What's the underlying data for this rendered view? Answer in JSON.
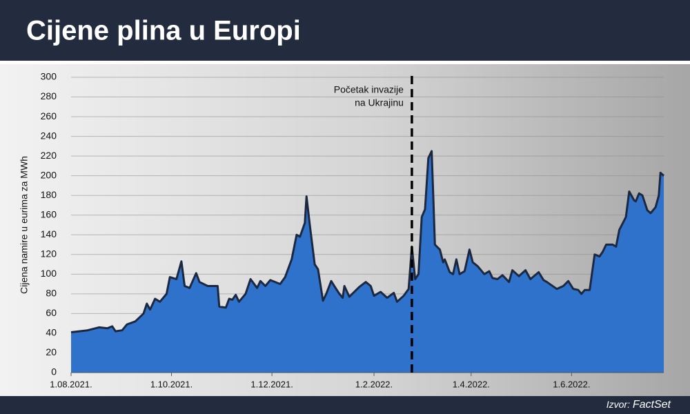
{
  "chart_data": {
    "type": "area",
    "title": "Cijene plina u Europi",
    "ylabel": "Cijena namire u eurima za MWh",
    "source": {
      "label": "Izvor:",
      "name": "FactSet"
    },
    "annotation": {
      "lines": [
        "Početak invazije",
        "na Ukrajinu"
      ],
      "x": "2022-02-24"
    },
    "color": "#2e72cc",
    "line_color": "#1c2740",
    "grid": true,
    "xlim": [
      "2021-08-01",
      "2022-07-27"
    ],
    "xticks": [
      {
        "value": "2021-08-01",
        "label": "1.08.2021."
      },
      {
        "value": "2021-10-01",
        "label": "1.10.2021."
      },
      {
        "value": "2021-12-01",
        "label": "1.12.2021."
      },
      {
        "value": "2022-02-01",
        "label": "1.2.2022."
      },
      {
        "value": "2022-04-01",
        "label": "1.4.2022."
      },
      {
        "value": "2022-06-01",
        "label": "1.6.2022."
      }
    ],
    "ylim": [
      0,
      300
    ],
    "yticks": [
      0,
      20,
      40,
      60,
      80,
      100,
      120,
      140,
      160,
      180,
      200,
      220,
      240,
      260,
      280,
      300
    ],
    "x": [
      "2021-08-01",
      "2021-08-11",
      "2021-08-18",
      "2021-08-23",
      "2021-08-26",
      "2021-08-28",
      "2021-09-01",
      "2021-09-04",
      "2021-09-09",
      "2021-09-14",
      "2021-09-16",
      "2021-09-18",
      "2021-09-21",
      "2021-09-24",
      "2021-09-28",
      "2021-09-30",
      "2021-10-04",
      "2021-10-07",
      "2021-10-09",
      "2021-10-12",
      "2021-10-16",
      "2021-10-18",
      "2021-10-23",
      "2021-10-29",
      "2021-10-30",
      "2021-11-03",
      "2021-11-05",
      "2021-11-07",
      "2021-11-09",
      "2021-11-11",
      "2021-11-15",
      "2021-11-18",
      "2021-11-22",
      "2021-11-24",
      "2021-11-27",
      "2021-11-30",
      "2021-12-06",
      "2021-12-09",
      "2021-12-13",
      "2021-12-16",
      "2021-12-18",
      "2021-12-21",
      "2021-12-22",
      "2021-12-24",
      "2021-12-27",
      "2021-12-29",
      "2022-01-01",
      "2022-01-03",
      "2022-01-06",
      "2022-01-09",
      "2022-01-11",
      "2022-01-13",
      "2022-01-14",
      "2022-01-17",
      "2022-01-23",
      "2022-01-27",
      "2022-01-30",
      "2022-02-01",
      "2022-02-05",
      "2022-02-09",
      "2022-02-13",
      "2022-02-15",
      "2022-02-19",
      "2022-02-22",
      "2022-02-24",
      "2022-02-26",
      "2022-02-28",
      "2022-03-02",
      "2022-03-04",
      "2022-03-06",
      "2022-03-08",
      "2022-03-09",
      "2022-03-10",
      "2022-03-13",
      "2022-03-15",
      "2022-03-16",
      "2022-03-19",
      "2022-03-21",
      "2022-03-23",
      "2022-03-25",
      "2022-03-28",
      "2022-03-31",
      "2022-04-02",
      "2022-04-05",
      "2022-04-09",
      "2022-04-12",
      "2022-04-14",
      "2022-04-17",
      "2022-04-20",
      "2022-04-24",
      "2022-04-26",
      "2022-04-30",
      "2022-05-04",
      "2022-05-07",
      "2022-05-12",
      "2022-05-15",
      "2022-05-17",
      "2022-05-23",
      "2022-05-27",
      "2022-05-30",
      "2022-06-02",
      "2022-06-05",
      "2022-06-07",
      "2022-06-09",
      "2022-06-12",
      "2022-06-15",
      "2022-06-18",
      "2022-06-20",
      "2022-06-22",
      "2022-06-26",
      "2022-06-28",
      "2022-06-30",
      "2022-07-04",
      "2022-07-06",
      "2022-07-09",
      "2022-07-10",
      "2022-07-12",
      "2022-07-14",
      "2022-07-17",
      "2022-07-19",
      "2022-07-22",
      "2022-07-24",
      "2022-07-25",
      "2022-07-27"
    ],
    "values": [
      41,
      43,
      46,
      45,
      47,
      42,
      43,
      49,
      52,
      60,
      70,
      64,
      75,
      72,
      80,
      97,
      95,
      113,
      88,
      86,
      101,
      92,
      88,
      88,
      67,
      66,
      75,
      74,
      79,
      72,
      80,
      95,
      86,
      93,
      88,
      94,
      90,
      97,
      115,
      140,
      138,
      152,
      179,
      150,
      110,
      105,
      73,
      80,
      93,
      85,
      80,
      76,
      88,
      77,
      87,
      92,
      88,
      78,
      82,
      76,
      81,
      72,
      78,
      85,
      128,
      95,
      100,
      158,
      166,
      218,
      225,
      180,
      130,
      125,
      112,
      115,
      102,
      100,
      115,
      100,
      103,
      125,
      112,
      108,
      100,
      103,
      96,
      95,
      99,
      92,
      104,
      98,
      104,
      95,
      102,
      94,
      92,
      85,
      88,
      93,
      85,
      84,
      80,
      84,
      84,
      120,
      118,
      123,
      130,
      130,
      128,
      145,
      158,
      184,
      175,
      174,
      182,
      180,
      165,
      162,
      168,
      180,
      203,
      200
    ]
  }
}
